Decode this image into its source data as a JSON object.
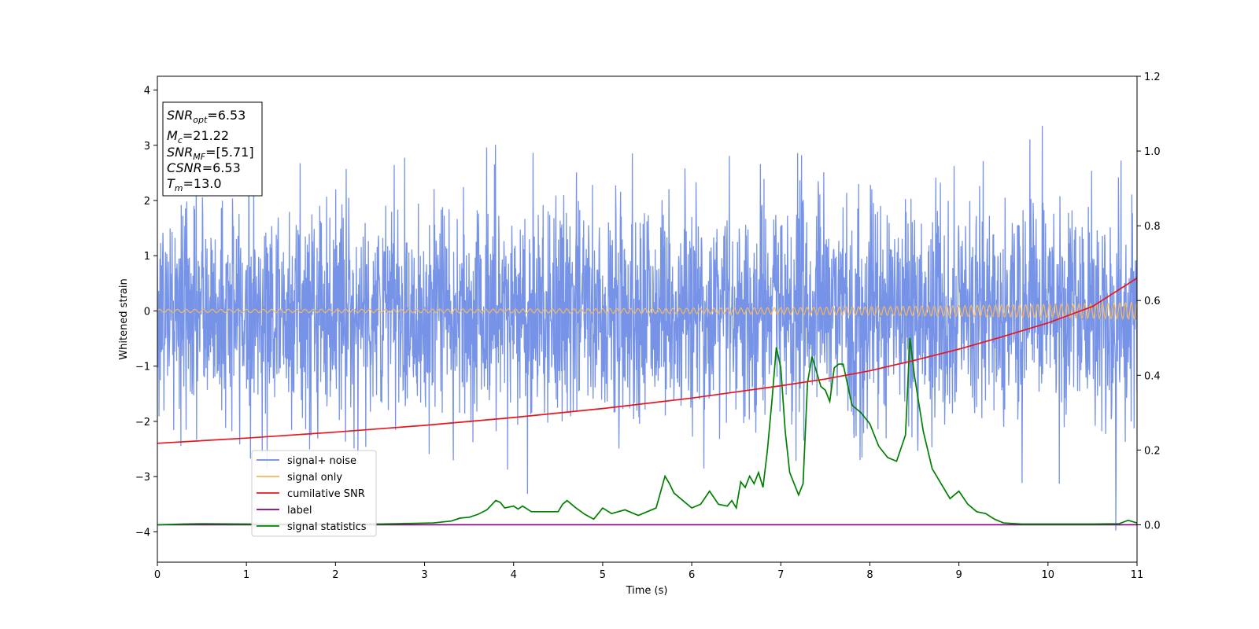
{
  "chart_data": {
    "type": "line",
    "xlabel": "Time (s)",
    "ylabel": "Whitened strain",
    "xlim": [
      0,
      11
    ],
    "ylim_left": [
      -4.55,
      4.25
    ],
    "ylim_right": [
      -0.1,
      1.2
    ],
    "x_ticks": [
      0,
      1,
      2,
      3,
      4,
      5,
      6,
      7,
      8,
      9,
      10,
      11
    ],
    "y_ticks_left": [
      -4,
      -3,
      -2,
      -1,
      0,
      1,
      2,
      3,
      4
    ],
    "y_ticks_right": [
      "0.0",
      "0.2",
      "0.4",
      "0.6",
      "0.8",
      "1.0",
      "1.2"
    ],
    "legend_position": "lower-left",
    "legend": [
      "signal+ noise",
      "signal only",
      "cumilative SNR",
      "label",
      "signal statistics"
    ],
    "colors": {
      "noise": "#6a8ae6",
      "signal": "#f5b760",
      "csnr": "#e8161c",
      "label": "#800080",
      "stats": "#008000"
    },
    "annotation": {
      "snr_opt": {
        "base": "SNR",
        "sub": "opt",
        "value": "=6.53"
      },
      "mc": {
        "base": "M",
        "sub": "c",
        "value": "=21.22"
      },
      "snr_mf": {
        "base": "SNR",
        "sub": "MF",
        "value": "=[5.71]"
      },
      "csnr": {
        "base": "CSNR",
        "sub": "",
        "value": "=6.53"
      },
      "tm": {
        "base": "T",
        "sub": "m",
        "value": "=13.0"
      }
    },
    "series": [
      {
        "name": "signal+ noise",
        "axis": "left",
        "style": "noise",
        "description_values": {
          "std": 1.0,
          "min": -4.1,
          "max": 3.85
        }
      },
      {
        "name": "signal only",
        "axis": "left",
        "style": "chirp",
        "values": {
          "amp_start": 0.03,
          "amp_end": 0.15
        }
      },
      {
        "name": "cumilative SNR",
        "axis": "right",
        "x": [
          0,
          1,
          2,
          3,
          4,
          5,
          6,
          7,
          7.5,
          8,
          8.5,
          9,
          9.5,
          10,
          10.5,
          11
        ],
        "y": [
          0.218,
          0.232,
          0.248,
          0.266,
          0.287,
          0.311,
          0.339,
          0.372,
          0.39,
          0.412,
          0.44,
          0.47,
          0.504,
          0.54,
          0.584,
          0.66
        ]
      },
      {
        "name": "label",
        "axis": "right",
        "x": [
          0,
          11
        ],
        "y": [
          0.0,
          0.0
        ]
      },
      {
        "name": "signal statistics",
        "axis": "right",
        "x": [
          0,
          0.3,
          0.5,
          1.0,
          1.5,
          2.0,
          2.5,
          2.9,
          3.1,
          3.3,
          3.4,
          3.5,
          3.6,
          3.7,
          3.8,
          3.85,
          3.9,
          4.0,
          4.05,
          4.1,
          4.2,
          4.3,
          4.5,
          4.55,
          4.6,
          4.7,
          4.8,
          4.9,
          5.0,
          5.1,
          5.25,
          5.4,
          5.5,
          5.6,
          5.7,
          5.75,
          5.8,
          5.9,
          6.0,
          6.1,
          6.2,
          6.3,
          6.4,
          6.45,
          6.5,
          6.55,
          6.6,
          6.65,
          6.7,
          6.75,
          6.8,
          6.85,
          6.9,
          6.95,
          7.0,
          7.05,
          7.1,
          7.2,
          7.25,
          7.3,
          7.35,
          7.4,
          7.45,
          7.5,
          7.55,
          7.6,
          7.65,
          7.7,
          7.8,
          7.9,
          8.0,
          8.1,
          8.2,
          8.3,
          8.4,
          8.45,
          8.5,
          8.6,
          8.7,
          8.8,
          8.9,
          9.0,
          9.1,
          9.2,
          9.3,
          9.4,
          9.5,
          9.7,
          10.0,
          10.5,
          10.8,
          10.9,
          11.0
        ],
        "y": [
          0.0,
          0.002,
          0.003,
          0.002,
          0.001,
          0.002,
          0.002,
          0.004,
          0.005,
          0.01,
          0.018,
          0.02,
          0.028,
          0.04,
          0.065,
          0.06,
          0.045,
          0.05,
          0.042,
          0.05,
          0.035,
          0.035,
          0.035,
          0.055,
          0.065,
          0.045,
          0.028,
          0.015,
          0.045,
          0.03,
          0.04,
          0.025,
          0.035,
          0.045,
          0.13,
          0.11,
          0.085,
          0.065,
          0.045,
          0.055,
          0.09,
          0.055,
          0.05,
          0.065,
          0.045,
          0.115,
          0.1,
          0.13,
          0.11,
          0.14,
          0.1,
          0.2,
          0.33,
          0.475,
          0.42,
          0.25,
          0.14,
          0.08,
          0.11,
          0.38,
          0.45,
          0.41,
          0.37,
          0.36,
          0.33,
          0.42,
          0.43,
          0.43,
          0.32,
          0.3,
          0.27,
          0.21,
          0.18,
          0.17,
          0.24,
          0.5,
          0.4,
          0.25,
          0.15,
          0.11,
          0.07,
          0.09,
          0.055,
          0.035,
          0.03,
          0.015,
          0.005,
          0.002,
          0.002,
          0.002,
          0.003,
          0.012,
          0.005
        ]
      }
    ]
  }
}
